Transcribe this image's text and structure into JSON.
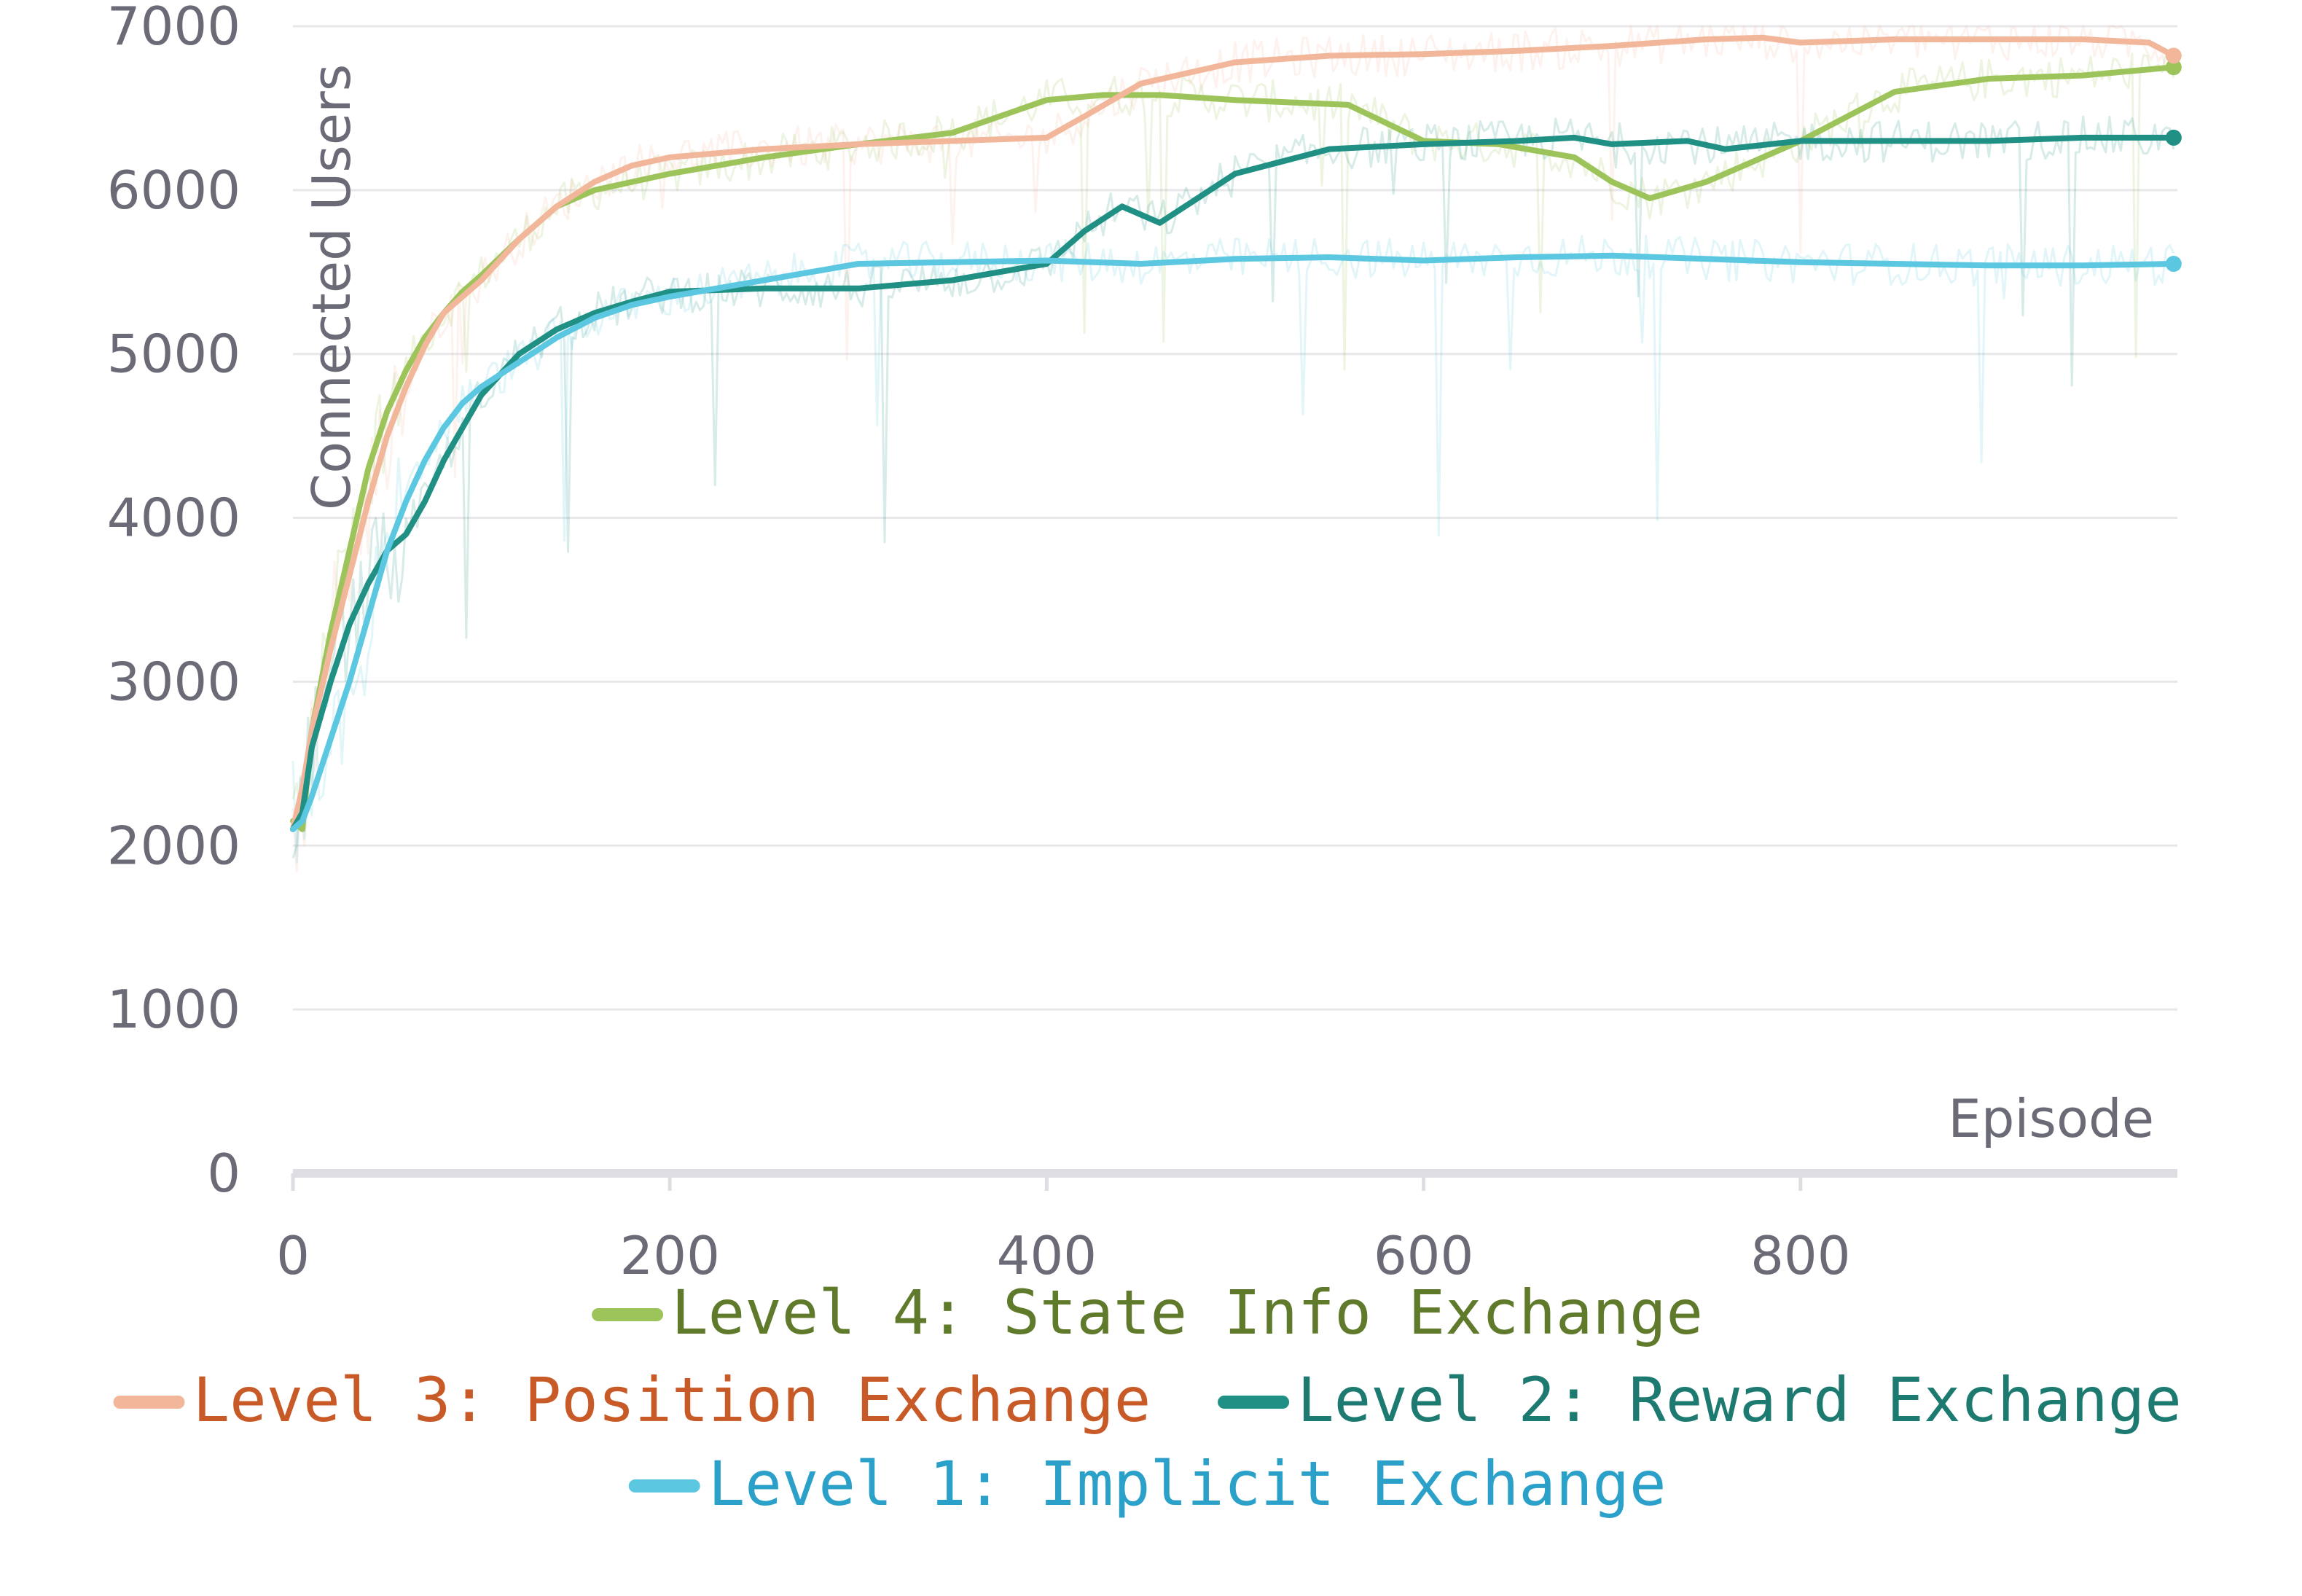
{
  "chart_data": {
    "type": "line",
    "title": "",
    "xlabel": "Episode",
    "ylabel": "Connected Users",
    "xlim": [
      0,
      1000
    ],
    "ylim": [
      0,
      7000
    ],
    "xticks": [
      0,
      200,
      400,
      600,
      800
    ],
    "yticks": [
      0,
      1000,
      2000,
      3000,
      4000,
      5000,
      6000,
      7000
    ],
    "grid": "horizontal",
    "legend_position": "bottom",
    "series": [
      {
        "name": "Level 4: State Info Exchange",
        "color": "#9dc45a",
        "text_color": "#5f7a2a",
        "x": [
          0,
          5,
          10,
          20,
          30,
          40,
          50,
          60,
          70,
          80,
          90,
          100,
          120,
          140,
          160,
          180,
          200,
          250,
          300,
          350,
          400,
          430,
          460,
          500,
          560,
          600,
          640,
          680,
          700,
          720,
          750,
          800,
          850,
          900,
          950,
          998
        ],
        "y": [
          2150,
          2100,
          2700,
          3300,
          3800,
          4300,
          4650,
          4900,
          5100,
          5250,
          5380,
          5480,
          5700,
          5900,
          6000,
          6050,
          6100,
          6200,
          6280,
          6350,
          6550,
          6580,
          6580,
          6550,
          6520,
          6300,
          6280,
          6200,
          6050,
          5950,
          6050,
          6300,
          6600,
          6680,
          6700,
          6750
        ]
      },
      {
        "name": "Level 3: Position Exchange",
        "color": "#f2b79a",
        "text_color": "#c85a28",
        "x": [
          0,
          5,
          10,
          20,
          30,
          40,
          50,
          60,
          70,
          80,
          90,
          100,
          120,
          140,
          160,
          180,
          200,
          250,
          300,
          350,
          400,
          420,
          450,
          500,
          550,
          600,
          650,
          700,
          750,
          780,
          800,
          850,
          900,
          950,
          985,
          998
        ],
        "y": [
          2100,
          2350,
          2700,
          3200,
          3650,
          4100,
          4500,
          4800,
          5050,
          5250,
          5350,
          5450,
          5700,
          5900,
          6050,
          6150,
          6200,
          6250,
          6280,
          6300,
          6320,
          6450,
          6650,
          6780,
          6820,
          6830,
          6850,
          6880,
          6920,
          6930,
          6900,
          6920,
          6920,
          6920,
          6900,
          6820
        ]
      },
      {
        "name": "Level 2: Reward Exchange",
        "color": "#208f84",
        "text_color": "#1d7a70",
        "x": [
          0,
          5,
          10,
          20,
          30,
          40,
          50,
          60,
          70,
          80,
          90,
          100,
          120,
          140,
          160,
          180,
          200,
          250,
          300,
          350,
          400,
          420,
          440,
          460,
          480,
          500,
          550,
          600,
          650,
          680,
          700,
          740,
          760,
          800,
          850,
          900,
          950,
          998
        ],
        "y": [
          2100,
          2200,
          2600,
          3000,
          3350,
          3600,
          3800,
          3900,
          4100,
          4350,
          4550,
          4750,
          5000,
          5150,
          5250,
          5320,
          5380,
          5400,
          5400,
          5450,
          5550,
          5750,
          5900,
          5800,
          5950,
          6100,
          6250,
          6280,
          6300,
          6320,
          6280,
          6300,
          6250,
          6300,
          6300,
          6300,
          6320,
          6320
        ]
      },
      {
        "name": "Level 1: Implicit Exchange",
        "color": "#5cc7e0",
        "text_color": "#2ba0c9",
        "x": [
          0,
          5,
          10,
          20,
          30,
          40,
          50,
          60,
          70,
          80,
          90,
          100,
          120,
          140,
          160,
          180,
          200,
          250,
          300,
          350,
          400,
          450,
          500,
          550,
          600,
          650,
          700,
          750,
          800,
          850,
          900,
          950,
          998
        ],
        "y": [
          2100,
          2150,
          2300,
          2650,
          3000,
          3400,
          3800,
          4100,
          4350,
          4550,
          4700,
          4800,
          4950,
          5100,
          5220,
          5300,
          5350,
          5450,
          5550,
          5560,
          5570,
          5550,
          5580,
          5590,
          5570,
          5590,
          5600,
          5580,
          5560,
          5550,
          5540,
          5540,
          5550
        ]
      }
    ]
  }
}
